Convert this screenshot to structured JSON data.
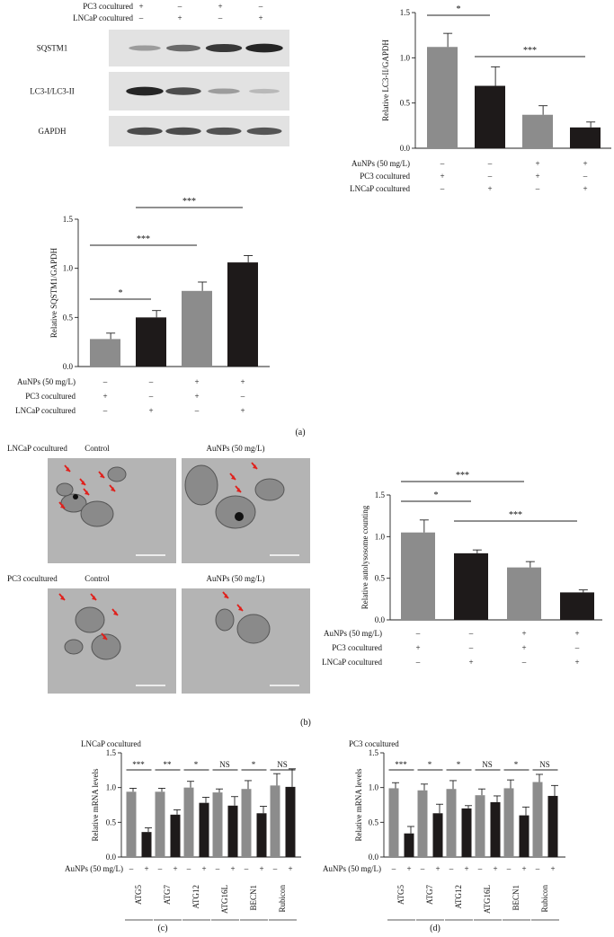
{
  "colors": {
    "gray": "#8c8c8c",
    "black": "#1e1a1a",
    "blot_bg": "#e2e2e2",
    "band": "#1a1a1a",
    "em_bg": "#b4b4b4",
    "arrow": "#e0201b"
  },
  "panel_labels": [
    "(a)",
    "(b)",
    "(c)",
    "(d)"
  ],
  "blot": {
    "header_rows": [
      {
        "label": "PC3 cocultured",
        "signs": [
          "+",
          "–",
          "+",
          "–"
        ]
      },
      {
        "label": "LNCaP cocultured",
        "signs": [
          "–",
          "+",
          "–",
          "+"
        ]
      }
    ],
    "bands": [
      {
        "label": "SQSTM1",
        "intensity": [
          0.35,
          0.6,
          0.85,
          0.95
        ]
      },
      {
        "label": "LC3-I/LC3-II",
        "intensity": [
          0.95,
          0.75,
          0.35,
          0.2
        ]
      },
      {
        "label": "GAPDH",
        "intensity": [
          0.75,
          0.75,
          0.72,
          0.7
        ]
      }
    ]
  },
  "treatment_rows": [
    {
      "label": "AuNPs (50 mg/L)",
      "signs": [
        "–",
        "–",
        "+",
        "+"
      ]
    },
    {
      "label": "PC3 cocultured",
      "signs": [
        "+",
        "–",
        "+",
        "–"
      ]
    },
    {
      "label": "LNCaP cocultured",
      "signs": [
        "–",
        "+",
        "–",
        "+"
      ]
    }
  ],
  "em": {
    "rows": [
      {
        "label": "LNCaP cocultured",
        "control": "Control",
        "treated": "AuNPs (50 mg/L)"
      },
      {
        "label": "PC3 cocultured",
        "control": "Control",
        "treated": "AuNPs (50 mg/L)"
      }
    ]
  },
  "chart_data": [
    {
      "id": "lc3",
      "type": "bar",
      "ylabel": "Relative LC3-II/GAPDH",
      "ylim": [
        0,
        1.5
      ],
      "yticks": [
        "0.0",
        "0.5",
        "1.0",
        "1.5"
      ],
      "tick_values": [
        0,
        0.5,
        1.0,
        1.5
      ],
      "values": [
        1.12,
        0.69,
        0.37,
        0.23
      ],
      "errors": [
        0.15,
        0.21,
        0.1,
        0.06
      ],
      "colors": [
        "gray",
        "black",
        "gray",
        "black"
      ],
      "significance": [
        {
          "from": 0,
          "to": 1,
          "label": "*"
        },
        {
          "from": 1,
          "to": 3,
          "label": "***"
        }
      ]
    },
    {
      "id": "sqstm1",
      "type": "bar",
      "ylabel": "Relative SQSTM1/GAPDH",
      "ylim": [
        0,
        1.5
      ],
      "yticks": [
        "0.0",
        "0.5",
        "1.0",
        "1.5"
      ],
      "tick_values": [
        0,
        0.5,
        1.0,
        1.5
      ],
      "values": [
        0.28,
        0.5,
        0.77,
        1.06
      ],
      "errors": [
        0.06,
        0.07,
        0.09,
        0.07
      ],
      "colors": [
        "gray",
        "black",
        "gray",
        "black"
      ],
      "significance": [
        {
          "from": 0,
          "to": 1,
          "label": "*"
        },
        {
          "from": 0,
          "to": 2,
          "label": "***"
        },
        {
          "from": 1,
          "to": 3,
          "label": "***"
        }
      ]
    },
    {
      "id": "autolysosome",
      "type": "bar",
      "ylabel": "Relative autolysosome counting",
      "ylim": [
        0,
        1.5
      ],
      "yticks": [
        "0.0",
        "0.5",
        "1.0",
        "1.5"
      ],
      "tick_values": [
        0,
        0.5,
        1.0,
        1.5
      ],
      "values": [
        1.05,
        0.8,
        0.63,
        0.33
      ],
      "errors": [
        0.15,
        0.04,
        0.07,
        0.03
      ],
      "colors": [
        "gray",
        "black",
        "gray",
        "black"
      ],
      "significance": [
        {
          "from": 0,
          "to": 1,
          "label": "*"
        },
        {
          "from": 0,
          "to": 2,
          "label": "***"
        },
        {
          "from": 1,
          "to": 3,
          "label": "***"
        }
      ]
    },
    {
      "id": "mrna_lncap",
      "type": "bar",
      "title": "LNCaP cocultured",
      "ylabel": "Relative mRNA levels",
      "ylim": [
        0,
        1.5
      ],
      "yticks": [
        "0.0",
        "0.5",
        "1.0",
        "1.5"
      ],
      "tick_values": [
        0,
        0.5,
        1.0,
        1.5
      ],
      "categories": [
        "ATG5",
        "ATG7",
        "ATG12",
        "ATG16L",
        "BECN1",
        "Rubicon"
      ],
      "treatment_label": "AuNPs (50 mg/L)",
      "treatment_signs": [
        "–",
        "+"
      ],
      "series": [
        {
          "values": [
            0.94,
            0.94,
            1.0,
            0.93,
            0.98,
            1.03
          ],
          "errors": [
            0.05,
            0.05,
            0.09,
            0.05,
            0.12,
            0.17
          ]
        },
        {
          "values": [
            0.36,
            0.61,
            0.78,
            0.74,
            0.63,
            1.01
          ],
          "errors": [
            0.06,
            0.07,
            0.08,
            0.13,
            0.1,
            0.26
          ]
        }
      ],
      "significance": [
        "***",
        "**",
        "*",
        "NS",
        "*",
        "NS"
      ]
    },
    {
      "id": "mrna_pc3",
      "type": "bar",
      "title": "PC3 cocultured",
      "ylabel": "Relative mRNA levels",
      "ylim": [
        0,
        1.5
      ],
      "yticks": [
        "0.0",
        "0.5",
        "1.0",
        "1.5"
      ],
      "tick_values": [
        0,
        0.5,
        1.0,
        1.5
      ],
      "categories": [
        "ATG5",
        "ATG7",
        "ATG12",
        "ATG16L",
        "BECN1",
        "Rubicon"
      ],
      "treatment_label": "AuNPs (50 mg/L)",
      "treatment_signs": [
        "–",
        "+"
      ],
      "series": [
        {
          "values": [
            0.99,
            0.96,
            0.98,
            0.89,
            0.99,
            1.08
          ],
          "errors": [
            0.08,
            0.09,
            0.12,
            0.09,
            0.12,
            0.11
          ]
        },
        {
          "values": [
            0.34,
            0.63,
            0.7,
            0.79,
            0.6,
            0.88
          ],
          "errors": [
            0.1,
            0.13,
            0.04,
            0.09,
            0.12,
            0.15
          ]
        }
      ],
      "significance": [
        "***",
        "*",
        "*",
        "NS",
        "*",
        "NS"
      ]
    }
  ]
}
